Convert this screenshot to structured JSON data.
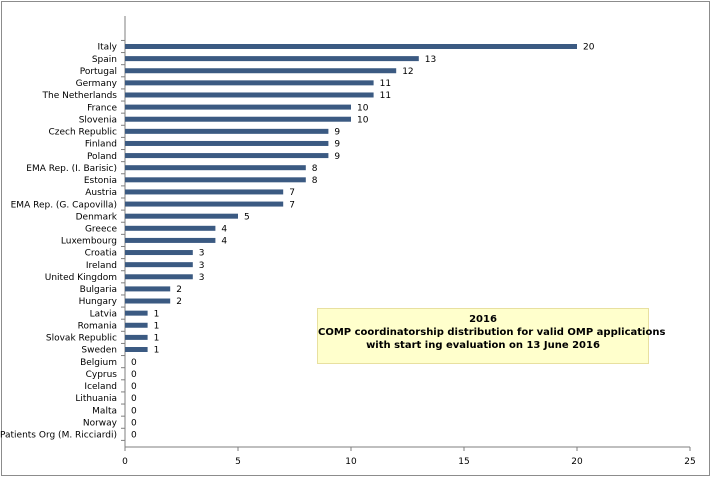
{
  "chart_data": {
    "type": "bar",
    "orientation": "horizontal",
    "categories": [
      "Italy",
      "Spain",
      "Portugal",
      "Germany",
      "The Netherlands",
      "France",
      "Slovenia",
      "Czech Republic",
      "Finland",
      "Poland",
      "EMA Rep. (I. Barisic)",
      "Estonia",
      "Austria",
      "EMA Rep. (G. Capovilla)",
      "Denmark",
      "Greece",
      "Luxembourg",
      "Croatia",
      "Ireland",
      "United Kingdom",
      "Bulgaria",
      "Hungary",
      "Latvia",
      "Romania",
      "Slovak Republic",
      "Sweden",
      "Belgium",
      "Cyprus",
      "Iceland",
      "Lithuania",
      "Malta",
      "Norway",
      "Patients Org (M. Ricciardi)"
    ],
    "values": [
      20,
      13,
      12,
      11,
      11,
      10,
      10,
      9,
      9,
      9,
      8,
      8,
      7,
      7,
      5,
      4,
      4,
      3,
      3,
      3,
      2,
      2,
      1,
      1,
      1,
      1,
      0,
      0,
      0,
      0,
      0,
      0,
      0
    ],
    "xlim": [
      0,
      25
    ],
    "xticks": [
      0,
      5,
      10,
      15,
      20,
      25
    ],
    "grid": false,
    "bar_color": "#3b5a82",
    "annotation": {
      "line1": "2016",
      "line2": "COMP coordinatorship  distribution for valid OMP applications",
      "line3": "with start ing evaluation on 13 June 2016"
    }
  }
}
